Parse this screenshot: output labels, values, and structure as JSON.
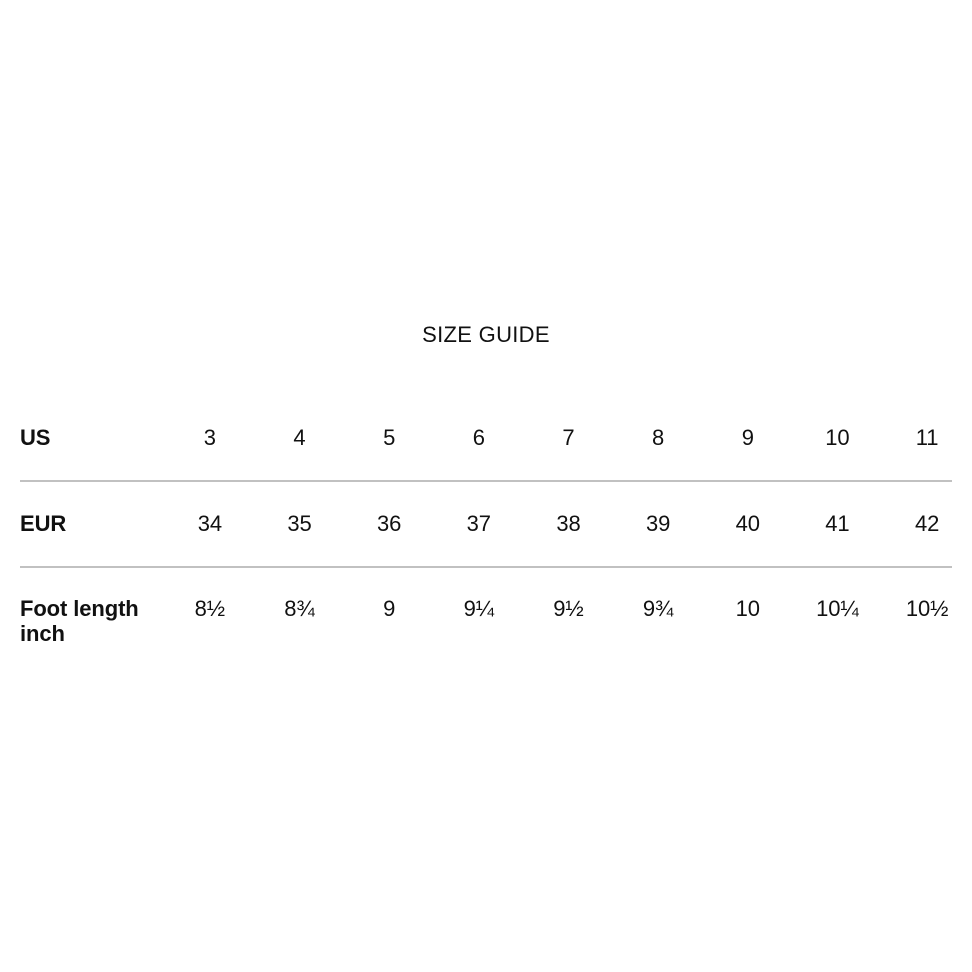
{
  "page": {
    "title": "SIZE GUIDE"
  },
  "colors": {
    "background": "#ffffff",
    "text": "#111111",
    "divider": "#c1c1c1"
  },
  "size_table": {
    "rows": [
      {
        "label": "US",
        "values": [
          "3",
          "4",
          "5",
          "6",
          "7",
          "8",
          "9",
          "10",
          "11"
        ]
      },
      {
        "label": "EUR",
        "values": [
          "34",
          "35",
          "36",
          "37",
          "38",
          "39",
          "40",
          "41",
          "42"
        ]
      },
      {
        "label": "Foot length inch",
        "values": [
          "8½",
          "8¾",
          "9",
          "9¼",
          "9½",
          "9¾",
          "10",
          "10¼",
          "10½"
        ]
      }
    ]
  }
}
